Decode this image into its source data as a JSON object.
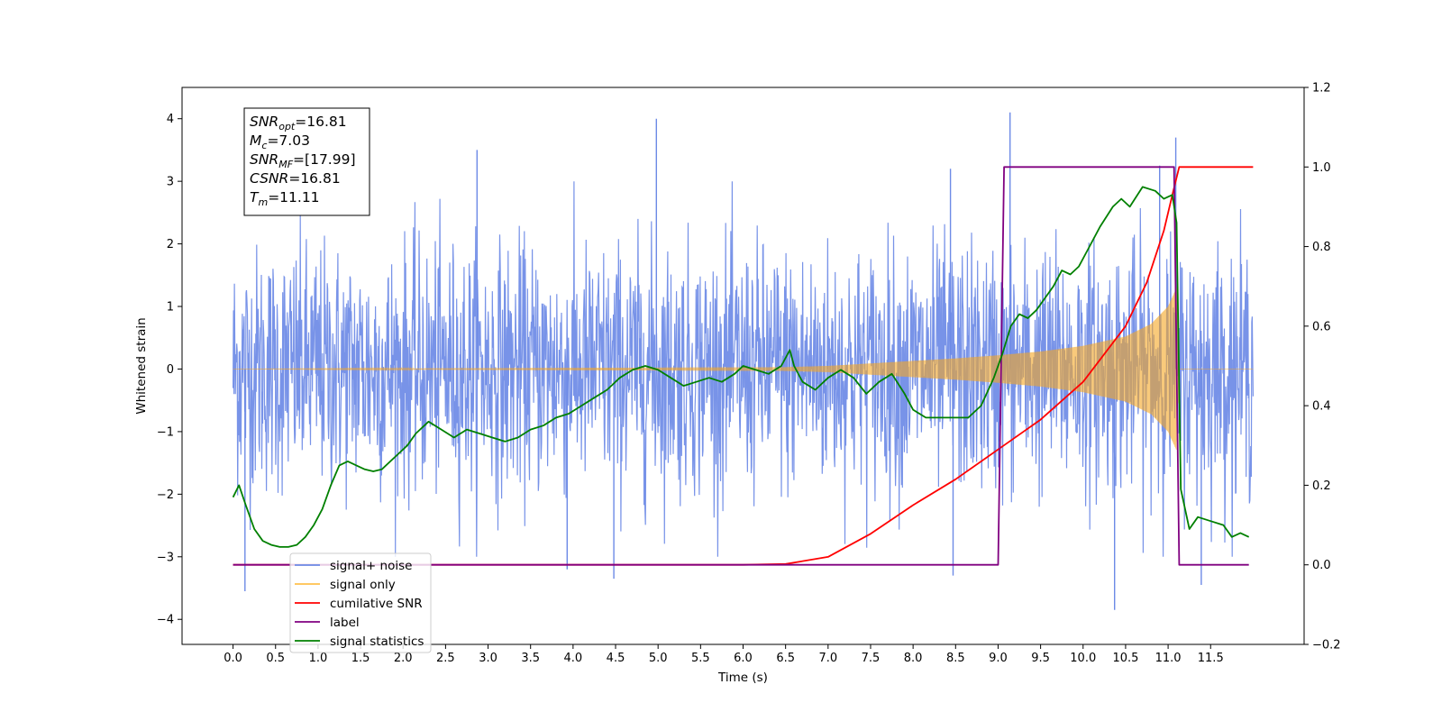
{
  "chart_data": {
    "type": "line",
    "xlabel": "Time (s)",
    "ylabel": "Whitened strain",
    "xlim": [
      -0.6,
      12.6
    ],
    "ylim": [
      -4.4,
      4.5
    ],
    "y2lim": [
      -0.2,
      1.2
    ],
    "x_ticks": [
      "0.0",
      "0.5",
      "1.0",
      "1.5",
      "2.0",
      "2.5",
      "3.0",
      "3.5",
      "4.0",
      "4.5",
      "5.0",
      "5.5",
      "6.0",
      "6.5",
      "7.0",
      "7.5",
      "8.0",
      "8.5",
      "9.0",
      "9.5",
      "10.0",
      "10.5",
      "11.0",
      "11.5"
    ],
    "y_ticks": [
      "4",
      "3",
      "2",
      "1",
      "0",
      "−1",
      "−2",
      "−3",
      "−4"
    ],
    "y2_ticks": [
      "1.2",
      "1.0",
      "0.8",
      "0.6",
      "0.4",
      "0.2",
      "0.0",
      "−0.2"
    ],
    "grid": false,
    "legend_position": "lower-left",
    "colors": {
      "noise": "#6d8ae6",
      "signal": "#f5a623",
      "cumulative_snr": "#ff0000",
      "label": "#800080",
      "statistics": "#008000"
    },
    "annotation": [
      {
        "base": "SNR",
        "sub": "opt",
        "value": "=16.81"
      },
      {
        "base": "M",
        "sub": "c",
        "value": "=7.03"
      },
      {
        "base": "SNR",
        "sub": "MF",
        "value": "=[17.99]"
      },
      {
        "base": "CSNR",
        "sub": "",
        "value": "=16.81"
      },
      {
        "base": "T",
        "sub": "m",
        "value": "=11.11"
      }
    ],
    "series": [
      {
        "name": "signal+ noise",
        "axis": "left",
        "t_range": [
          0.0,
          12.0
        ],
        "std": 1.0,
        "peaks": [
          [
            4.98,
            4.0
          ],
          [
            9.14,
            4.1
          ],
          [
            2.87,
            3.5
          ],
          [
            8.44,
            3.2
          ],
          [
            10.9,
            3.25
          ],
          [
            11.09,
            3.7
          ],
          [
            0.14,
            -3.55
          ],
          [
            3.93,
            -3.2
          ],
          [
            4.48,
            -3.35
          ],
          [
            10.37,
            -3.85
          ],
          [
            11.39,
            -3.45
          ],
          [
            8.47,
            -3.3
          ]
        ]
      },
      {
        "name": "signal only",
        "axis": "left",
        "t_range": [
          0.0,
          12.0
        ],
        "envelope": [
          [
            0.0,
            0.0
          ],
          [
            6.5,
            0.03
          ],
          [
            7.0,
            0.05
          ],
          [
            7.5,
            0.09
          ],
          [
            8.0,
            0.13
          ],
          [
            8.5,
            0.17
          ],
          [
            9.0,
            0.22
          ],
          [
            9.5,
            0.28
          ],
          [
            10.0,
            0.37
          ],
          [
            10.5,
            0.52
          ],
          [
            10.8,
            0.72
          ],
          [
            11.0,
            1.0
          ],
          [
            11.1,
            1.3
          ],
          [
            11.13,
            0.0
          ],
          [
            12.0,
            0.0
          ]
        ]
      },
      {
        "name": "cumilative SNR",
        "axis": "right",
        "x": [
          0.0,
          6.0,
          6.5,
          7.0,
          7.5,
          8.0,
          8.5,
          9.0,
          9.5,
          10.0,
          10.5,
          10.75,
          10.95,
          11.05,
          11.13,
          11.5,
          12.0
        ],
        "y": [
          0.0,
          0.0,
          0.002,
          0.02,
          0.078,
          0.15,
          0.215,
          0.29,
          0.365,
          0.46,
          0.6,
          0.71,
          0.84,
          0.93,
          1.0,
          1.0,
          1.0
        ]
      },
      {
        "name": "label",
        "axis": "right",
        "x": [
          0.0,
          9.0,
          9.07,
          11.07,
          11.13,
          11.95
        ],
        "y": [
          0.0,
          0.0,
          1.0,
          1.0,
          0.0,
          0.0
        ]
      },
      {
        "name": "signal statistics",
        "axis": "right",
        "x": [
          0.0,
          0.07,
          0.15,
          0.25,
          0.35,
          0.45,
          0.55,
          0.65,
          0.75,
          0.85,
          0.95,
          1.05,
          1.15,
          1.25,
          1.35,
          1.45,
          1.55,
          1.65,
          1.75,
          1.85,
          1.95,
          2.05,
          2.15,
          2.3,
          2.45,
          2.6,
          2.75,
          2.9,
          3.05,
          3.2,
          3.35,
          3.5,
          3.65,
          3.8,
          3.95,
          4.1,
          4.25,
          4.4,
          4.55,
          4.7,
          4.85,
          5.0,
          5.15,
          5.3,
          5.45,
          5.6,
          5.75,
          5.9,
          6.0,
          6.15,
          6.3,
          6.45,
          6.55,
          6.6,
          6.7,
          6.85,
          7.0,
          7.15,
          7.3,
          7.45,
          7.6,
          7.75,
          7.9,
          8.0,
          8.15,
          8.35,
          8.5,
          8.65,
          8.8,
          8.95,
          9.05,
          9.15,
          9.25,
          9.35,
          9.45,
          9.55,
          9.65,
          9.75,
          9.85,
          9.95,
          10.05,
          10.2,
          10.35,
          10.45,
          10.55,
          10.7,
          10.85,
          10.95,
          11.05,
          11.1,
          11.15,
          11.25,
          11.35,
          11.5,
          11.65,
          11.75,
          11.85,
          11.95
        ],
        "y": [
          0.17,
          0.2,
          0.15,
          0.09,
          0.06,
          0.05,
          0.045,
          0.045,
          0.05,
          0.07,
          0.1,
          0.14,
          0.2,
          0.25,
          0.26,
          0.25,
          0.24,
          0.235,
          0.24,
          0.26,
          0.28,
          0.3,
          0.33,
          0.36,
          0.34,
          0.32,
          0.34,
          0.33,
          0.32,
          0.31,
          0.32,
          0.34,
          0.35,
          0.37,
          0.38,
          0.4,
          0.42,
          0.44,
          0.47,
          0.49,
          0.5,
          0.49,
          0.47,
          0.45,
          0.46,
          0.47,
          0.46,
          0.48,
          0.5,
          0.49,
          0.48,
          0.5,
          0.54,
          0.5,
          0.46,
          0.44,
          0.47,
          0.49,
          0.47,
          0.43,
          0.46,
          0.48,
          0.43,
          0.39,
          0.37,
          0.37,
          0.37,
          0.37,
          0.4,
          0.47,
          0.53,
          0.6,
          0.63,
          0.62,
          0.64,
          0.67,
          0.7,
          0.74,
          0.73,
          0.75,
          0.79,
          0.85,
          0.9,
          0.92,
          0.9,
          0.95,
          0.94,
          0.92,
          0.93,
          0.86,
          0.19,
          0.09,
          0.12,
          0.11,
          0.1,
          0.07,
          0.08,
          0.07
        ]
      }
    ]
  }
}
